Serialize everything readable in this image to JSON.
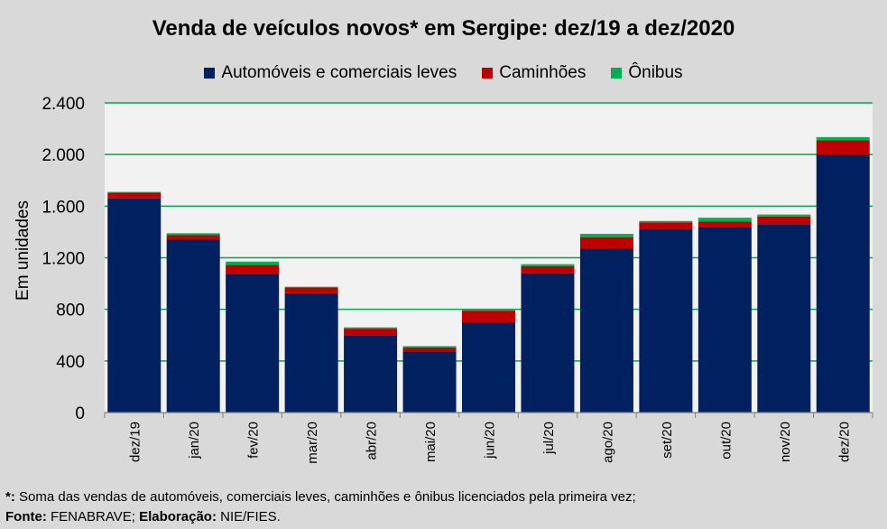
{
  "chart_data": {
    "type": "bar",
    "stacked": true,
    "title": "Venda de veículos novos* em Sergipe: dez/19 a dez/2020",
    "xlabel": "",
    "ylabel": "Em unidades",
    "ylim": [
      0,
      2400
    ],
    "yticks": [
      0,
      400,
      800,
      1200,
      1600,
      2000,
      2400
    ],
    "ytick_labels": [
      "0",
      "400",
      "800",
      "1.200",
      "1.600",
      "2.000",
      "2.400"
    ],
    "grid": true,
    "legend_position": "top",
    "categories": [
      "dez/19",
      "jan/20",
      "fev/20",
      "mar/20",
      "abr/20",
      "mai/20",
      "jun/20",
      "jul/20",
      "ago/20",
      "set/20",
      "out/20",
      "nov/20",
      "dez/20"
    ],
    "series": [
      {
        "name": "Automóveis e comerciais leves",
        "color": "#002060",
        "values": [
          1660,
          1340,
          1075,
          925,
          600,
          475,
          700,
          1080,
          1270,
          1420,
          1440,
          1460,
          2000
        ]
      },
      {
        "name": "Caminhões",
        "color": "#c00000",
        "values": [
          45,
          35,
          70,
          45,
          50,
          30,
          90,
          55,
          90,
          55,
          40,
          60,
          110
        ]
      },
      {
        "name": "Ônibus",
        "color": "#00b050",
        "values": [
          5,
          15,
          25,
          5,
          10,
          10,
          5,
          15,
          25,
          10,
          30,
          15,
          25
        ]
      }
    ]
  },
  "colors": {
    "plot_background": "#f2f2f2",
    "gridline": "#00a651",
    "figure_background": "#d9d9d9"
  },
  "footnote": {
    "line1_mark": "*:",
    "line1_text": " Soma das vendas de automóveis, comerciais leves, caminhões e ônibus licenciados pela primeira vez;",
    "fonte_label": "Fonte:",
    "fonte_text": " FENABRAVE; ",
    "elaboracao_label": "Elaboração:",
    "elaboracao_text": " NIE/FIES."
  }
}
